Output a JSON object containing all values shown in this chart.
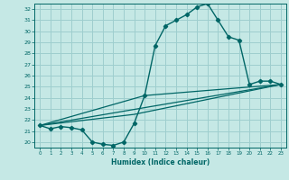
{
  "title": "",
  "xlabel": "Humidex (Indice chaleur)",
  "bg_color": "#c5e8e5",
  "grid_color": "#9ecece",
  "line_color": "#006666",
  "xlim": [
    -0.5,
    23.5
  ],
  "ylim": [
    19.5,
    32.5
  ],
  "xticks": [
    0,
    1,
    2,
    3,
    4,
    5,
    6,
    7,
    8,
    9,
    10,
    11,
    12,
    13,
    14,
    15,
    16,
    17,
    18,
    19,
    20,
    21,
    22,
    23
  ],
  "yticks": [
    20,
    21,
    22,
    23,
    24,
    25,
    26,
    27,
    28,
    29,
    30,
    31,
    32
  ],
  "curve_x": [
    0,
    1,
    2,
    3,
    4,
    5,
    6,
    7,
    8,
    9,
    10,
    11,
    12,
    13,
    14,
    15,
    16,
    17,
    18,
    19,
    20,
    21,
    22,
    23
  ],
  "curve_y": [
    21.5,
    21.2,
    21.4,
    21.3,
    21.1,
    20.0,
    19.8,
    19.7,
    20.0,
    21.7,
    24.2,
    28.7,
    30.5,
    31.0,
    31.5,
    32.2,
    32.5,
    31.0,
    29.5,
    29.2,
    25.2,
    25.5,
    25.5,
    25.2
  ],
  "line1_x": [
    0,
    23
  ],
  "line1_y": [
    21.5,
    25.2
  ],
  "line2_x": [
    0,
    9,
    23
  ],
  "line2_y": [
    21.5,
    22.5,
    25.2
  ],
  "line3_x": [
    0,
    10,
    23
  ],
  "line3_y": [
    21.5,
    24.2,
    25.2
  ]
}
